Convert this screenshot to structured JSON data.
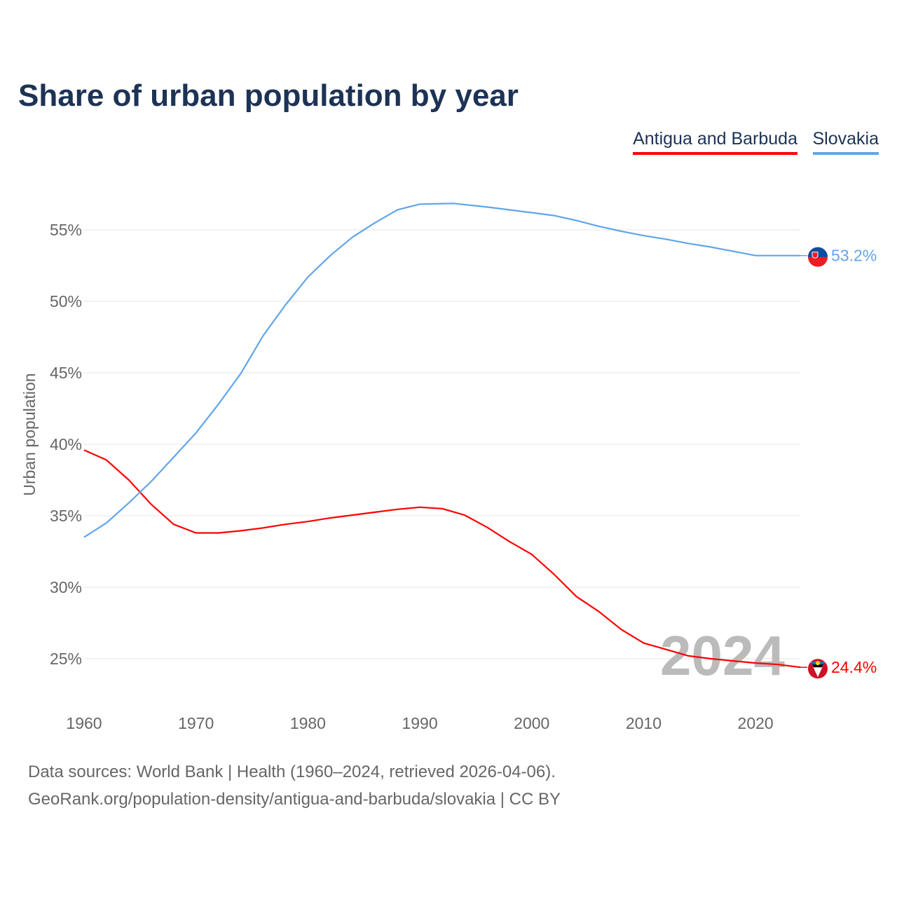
{
  "title": "Share of urban population by year",
  "chart_data": {
    "type": "line",
    "title": "Share of urban population by year",
    "xlabel": "",
    "ylabel": "Urban population",
    "xlim": [
      1960,
      2024
    ],
    "ylim": [
      23,
      58
    ],
    "grid": true,
    "legend_placement": "top-right",
    "x_ticks": [
      "1960",
      "1970",
      "1980",
      "1990",
      "2000",
      "2010",
      "2020"
    ],
    "y_ticks": [
      {
        "value": 25,
        "label": "25%"
      },
      {
        "value": 30,
        "label": "30%"
      },
      {
        "value": 35,
        "label": "35%"
      },
      {
        "value": 40,
        "label": "40%"
      },
      {
        "value": 45,
        "label": "45%"
      },
      {
        "value": 50,
        "label": "50%"
      },
      {
        "value": 55,
        "label": "55%"
      }
    ],
    "year_watermark": "2024",
    "series": [
      {
        "name": "Antigua and Barbuda",
        "color": "#ff0000",
        "end_label": "24.4%",
        "flag_icon": "antigua-and-barbuda-flag",
        "x": [
          1960,
          1962,
          1964,
          1966,
          1968,
          1970,
          1972,
          1974,
          1976,
          1978,
          1980,
          1982,
          1984,
          1986,
          1988,
          1990,
          1992,
          1994,
          1996,
          1998,
          2000,
          2002,
          2004,
          2006,
          2008,
          2010,
          2012,
          2014,
          2016,
          2018,
          2020,
          2022,
          2024
        ],
        "values": [
          39.6,
          38.9,
          37.5,
          35.8,
          34.4,
          33.8,
          33.8,
          33.95,
          34.15,
          34.4,
          34.6,
          34.85,
          35.05,
          35.25,
          35.45,
          35.6,
          35.5,
          35.05,
          34.2,
          33.2,
          32.3,
          30.9,
          29.35,
          28.3,
          27.05,
          26.1,
          25.65,
          25.2,
          25.0,
          24.85,
          24.7,
          24.6,
          24.4
        ]
      },
      {
        "name": "Slovakia",
        "color": "#60a5ea",
        "end_label": "53.2%",
        "flag_icon": "slovakia-flag",
        "x": [
          1960,
          1962,
          1964,
          1966,
          1968,
          1970,
          1972,
          1974,
          1976,
          1978,
          1980,
          1982,
          1984,
          1986,
          1988,
          1990,
          1993,
          1996,
          2000,
          2002,
          2004,
          2006,
          2008,
          2010,
          2012,
          2014,
          2016,
          2018,
          2020,
          2022,
          2024
        ],
        "values": [
          33.5,
          34.5,
          35.9,
          37.4,
          39.1,
          40.8,
          42.8,
          44.95,
          47.6,
          49.75,
          51.7,
          53.2,
          54.5,
          55.5,
          56.4,
          56.8,
          56.85,
          56.6,
          56.2,
          56.0,
          55.65,
          55.25,
          54.9,
          54.6,
          54.35,
          54.05,
          53.8,
          53.5,
          53.2,
          53.2,
          53.2
        ]
      }
    ]
  },
  "footer": {
    "sources": "Data sources: World Bank | Health (1960–2024, retrieved 2026-04-06).",
    "attribution": "GeoRank.org/population-density/antigua-and-barbuda/slovakia | CC BY"
  }
}
